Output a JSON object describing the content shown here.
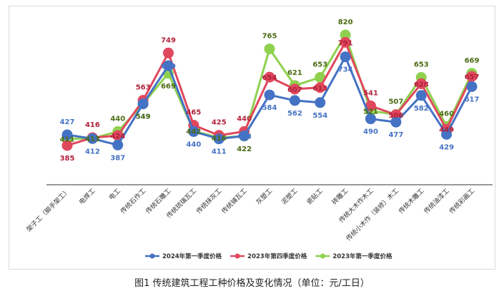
{
  "caption": "图1 传统建筑工程工种价格及变化情况（单位：元/工日）",
  "chart_data": {
    "type": "line",
    "categories": [
      "架子工（脚手架工）",
      "电焊工",
      "电工",
      "传统石作工",
      "传统石雕工",
      "传统琉璃瓦工",
      "传统抹灰工",
      "传统铺瓦工",
      "灰塑工",
      "泥塑工",
      "瓷贴工",
      "砖雕工",
      "传统大木作木工",
      "传统小木作（装修）木工",
      "传统木雕工",
      "传统油漆工",
      "传统彩画工"
    ],
    "series": [
      {
        "name": "2024年第一季度价格",
        "color": "#4472c4",
        "values": [
          427,
          412,
          387,
          549,
          699,
          440,
          411,
          423,
          584,
          562,
          554,
          734,
          490,
          477,
          582,
          429,
          617
        ]
      },
      {
        "name": "2023年第四季度价格",
        "color": "#e0485e",
        "values": [
          385,
          416,
          424,
          563,
          749,
          465,
          425,
          440,
          654,
          607,
          613,
          791,
          541,
          506,
          628,
          449,
          657
        ]
      },
      {
        "name": "2023年第一季度价格",
        "color": "#8fd14f",
        "values": [
          411,
          413,
          440,
          549,
          669,
          442,
          416,
          422,
          765,
          621,
          653,
          820,
          521,
          507,
          653,
          460,
          669
        ]
      }
    ],
    "label_colors": [
      "#4472c4",
      "#b0213a",
      "#4a6b12"
    ],
    "ylim": [
      100,
      850
    ],
    "grid": false,
    "legend_position": "bottom",
    "title": "",
    "xlabel": "",
    "ylabel": ""
  }
}
